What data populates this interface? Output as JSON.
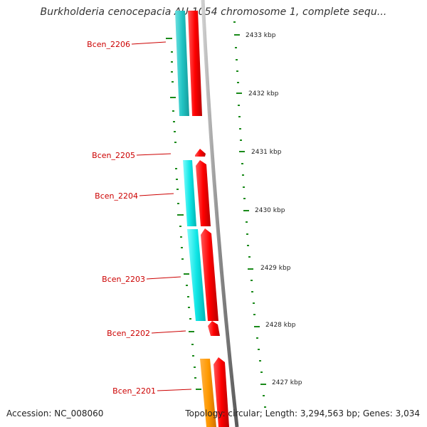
{
  "title": "Burkholderia cenocepacia AU 1054 chromosome 1, complete sequ...",
  "accession": "Accession: NC_008060",
  "summary": "Topology: circular; Length: 3,294,563 bp; Genes: 3,034",
  "colors": {
    "background": "#ffffff",
    "backbone": "#808080",
    "forward_cds": "#ff0000",
    "reverse_cds": "#00e5e5",
    "orf": "#ff9900",
    "tick": "#1a8a1a",
    "gene_label": "#cc0000",
    "ruler_text": "#222222"
  },
  "ruler": {
    "labels": [
      "2433 kbp",
      "2432 kbp",
      "2431 kbp",
      "2430 kbp",
      "2429 kbp",
      "2428 kbp",
      "2427 kbp"
    ]
  },
  "gene_labels": [
    "Bcen_2206",
    "Bcen_2205",
    "Bcen_2204",
    "Bcen_2203",
    "Bcen_2202",
    "Bcen_2201"
  ]
}
